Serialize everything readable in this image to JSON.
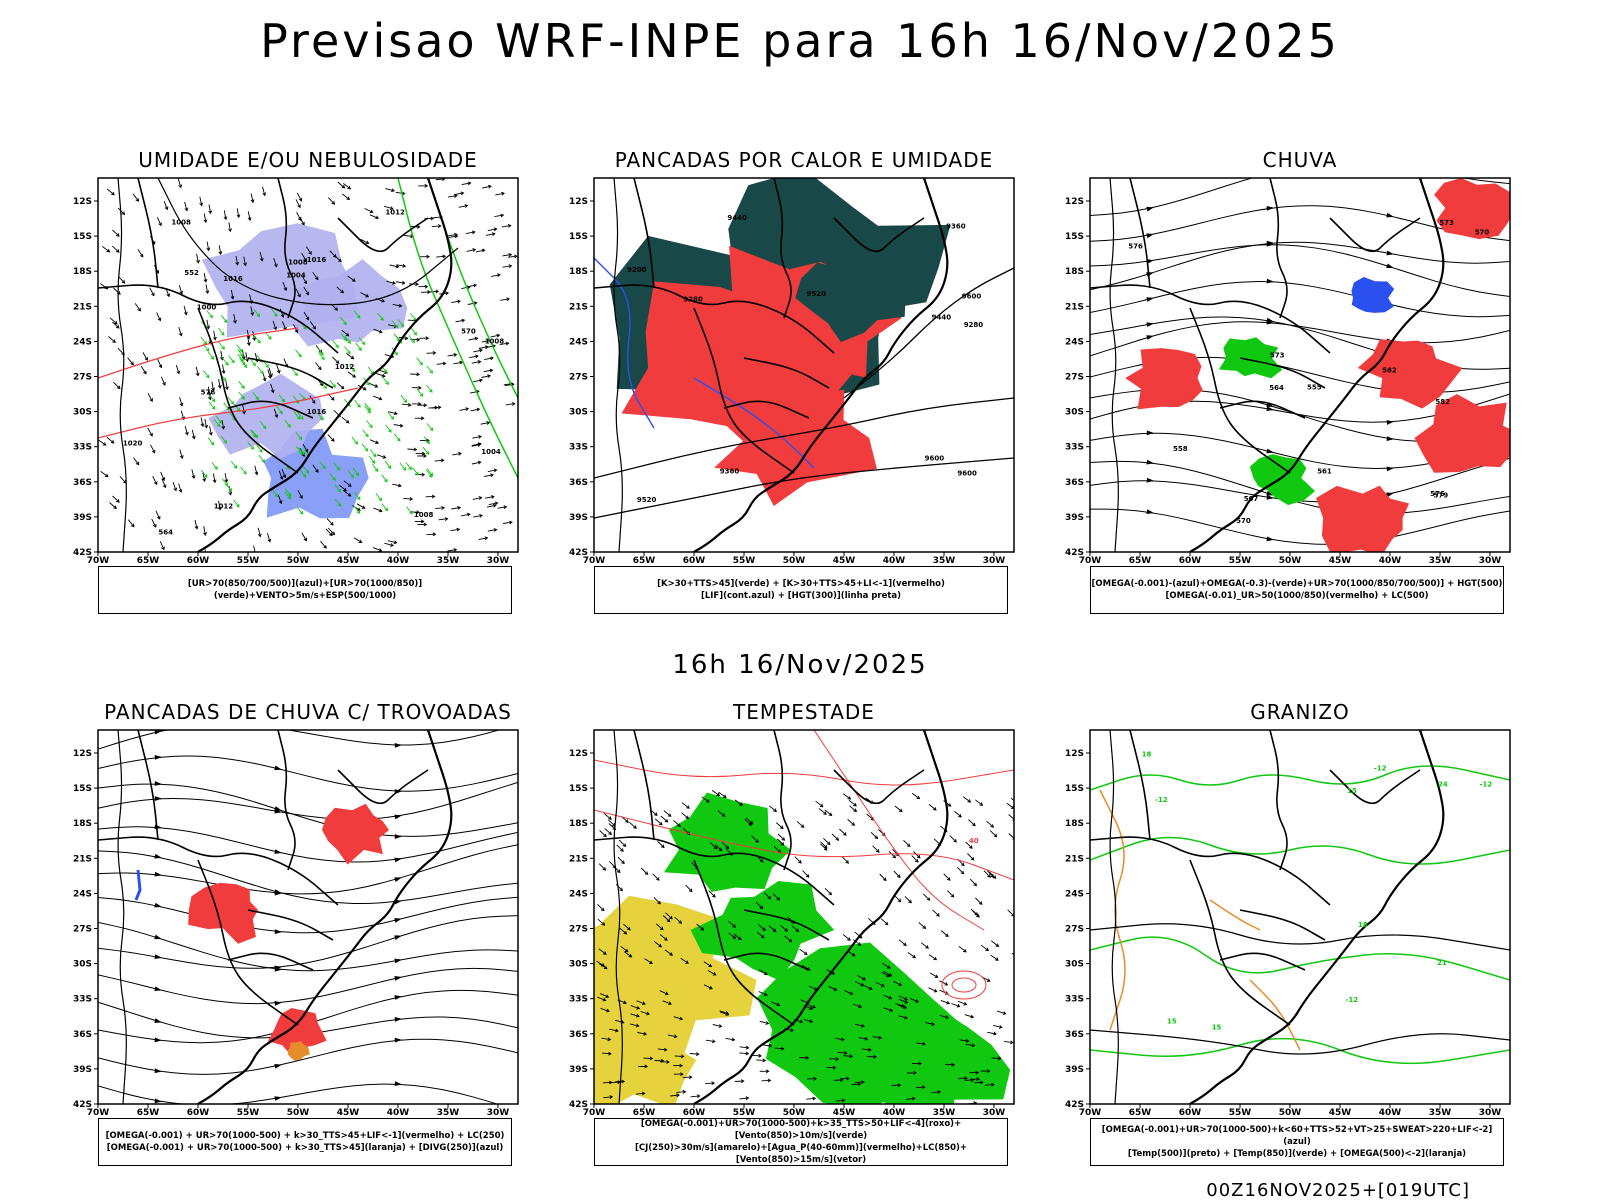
{
  "header": {
    "title": "Previsao WRF-INPE  para 16h 16/Nov/2025",
    "middle_date": "16h 16/Nov/2025",
    "footer_run": "00Z16NOV2025+[019UTC]"
  },
  "axes": {
    "lat_ticks": [
      "12S",
      "15S",
      "18S",
      "21S",
      "24S",
      "27S",
      "30S",
      "33S",
      "36S",
      "39S",
      "42S"
    ],
    "lon_ticks": [
      "70W",
      "65W",
      "60W",
      "55W",
      "50W",
      "45W",
      "40W",
      "35W",
      "30W"
    ]
  },
  "colors": {
    "red": "#f03c3c",
    "green": "#10c810",
    "blue": "#2a50f0",
    "lavender": "#b0b0f0",
    "darkteal": "#184848",
    "yellow": "#e6d23c",
    "orange": "#e68c2a"
  },
  "chart_data": [
    {
      "type": "map",
      "title": "UMIDADE E/OU NEBULOSIDADE",
      "legend": [
        "[UR>70(850/700/500)](azul)+[UR>70(1000/850)](verde)+VENTO>5m/s+ESP(500/1000)"
      ],
      "contour_labels": [
        "1008",
        "1008",
        "1004",
        "1008",
        "1012",
        "1012",
        "1016",
        "1012",
        "1004",
        "1020",
        "1008",
        "1016",
        "1016",
        "1000",
        "576",
        "564",
        "552",
        "570"
      ]
    },
    {
      "type": "map",
      "title": "PANCADAS POR CALOR E UMIDADE",
      "legend": [
        "[K>30+TTS>45](verde) + [K>30+TTS>45+LI<-1](vermelho)",
        "[LIF](cont.azul) + [HGT(300)](linha preta)"
      ],
      "contour_labels": [
        "9600",
        "9600",
        "9600",
        "9520",
        "9520",
        "9440",
        "9440",
        "9360",
        "9360",
        "9280",
        "9280",
        "9200"
      ]
    },
    {
      "type": "map",
      "title": "CHUVA",
      "legend": [
        "[OMEGA(-0.001)-(azul)+OMEGA(-0.3)-(verde)+UR>70(1000/850/700/500)] + HGT(500)",
        "[OMEGA(-0.01)_UR>50(1000/850)(vermelho) + LC(500)"
      ],
      "contour_labels": [
        "582",
        "582",
        "579",
        "576",
        "576",
        "573",
        "573",
        "570",
        "570",
        "567",
        "564",
        "561",
        "558",
        "555"
      ]
    },
    {
      "type": "map",
      "title": "PANCADAS DE CHUVA C/ TROVOADAS",
      "legend": [
        "[OMEGA(-0.001) + UR>70(1000-500) + k>30_TTS>45+LIF<-1](vermelho) + LC(250)",
        "[OMEGA(-0.001) + UR>70(1000-500) + k>30_TTS>45](laranja) + [DIVG(250)](azul)"
      ],
      "contour_labels": []
    },
    {
      "type": "map",
      "title": "TEMPESTADE",
      "legend": [
        "[OMEGA(-0.001)+UR>70(1000-500)+k>35_TTS>50+LIF<-4](roxo)+[Vento(850)>10m/s](verde)",
        "[CJ(250)>30m/s](amarelo)+[Agua_P(40-60mm)](vermelho)+LC(850)+[Vento(850)>15m/s](vetor)"
      ],
      "contour_labels": [
        "40"
      ]
    },
    {
      "type": "map",
      "title": "GRANIZO",
      "legend": [
        "[OMEGA(-0.001)+UR>70(1000-500)+k<60+TTS>52+VT>25+SWEAT>220+LIF<-2](azul)",
        "[Temp(500)](preto) + [Temp(850)](verde) + [OMEGA(500)<-2](laranja)"
      ],
      "contour_labels": [
        "-12",
        "-12",
        "-12",
        "-12",
        "15",
        "15",
        "15",
        "18",
        "18",
        "21",
        "24"
      ]
    }
  ]
}
